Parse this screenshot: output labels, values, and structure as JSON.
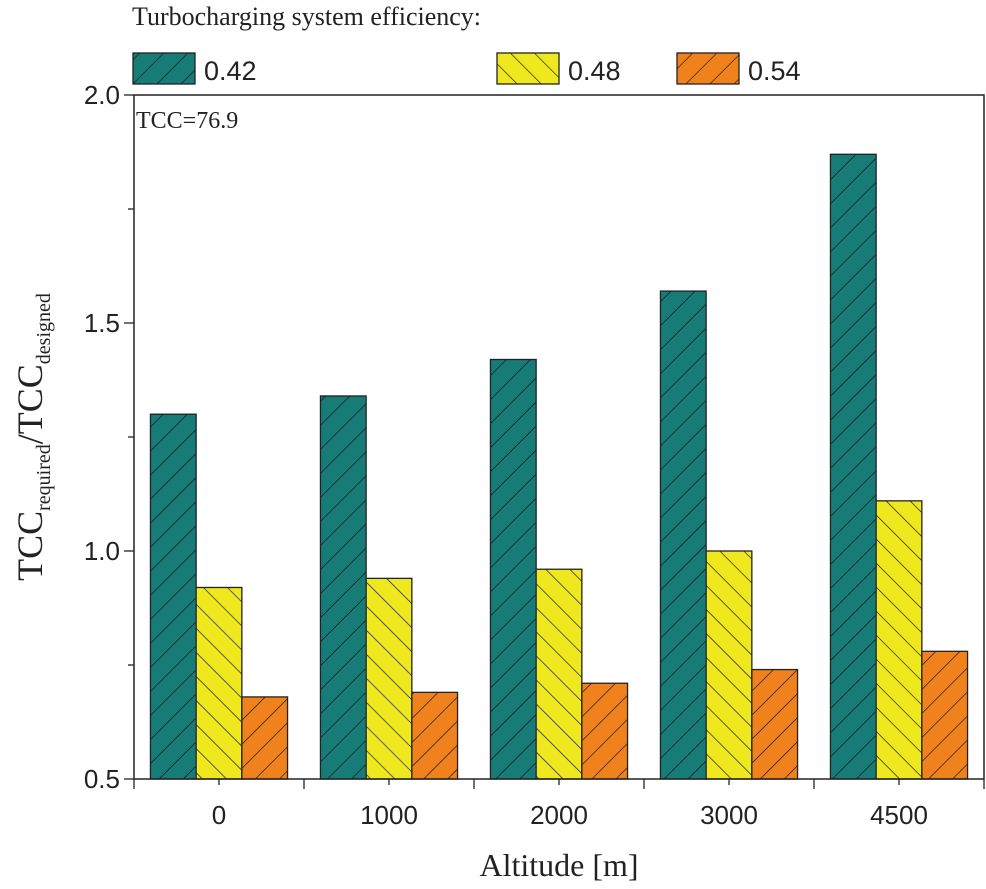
{
  "chart_data": {
    "type": "bar",
    "legend_title": "Turbocharging system efficiency:",
    "legend_placement": "top",
    "annotation": "TCC=76.9",
    "xlabel": "Altitude [m]",
    "ylabel_main": "TCC",
    "ylabel_sub1": "required",
    "ylabel_mid": "/TCC",
    "ylabel_sub2": "designed",
    "categories": [
      "0",
      "1000",
      "2000",
      "3000",
      "4500"
    ],
    "ylim": [
      0.5,
      2.0
    ],
    "yticks": [
      "0.5",
      "1.0",
      "1.5",
      "2.0"
    ],
    "grid": false,
    "series": [
      {
        "name": "0.42",
        "color": "#177b78",
        "hatch": "forward",
        "values": [
          1.3,
          1.34,
          1.42,
          1.57,
          1.87
        ]
      },
      {
        "name": "0.48",
        "color": "#f0e81e",
        "hatch": "backward",
        "values": [
          0.92,
          0.94,
          0.96,
          1.0,
          1.11
        ]
      },
      {
        "name": "0.54",
        "color": "#f0821e",
        "hatch": "forward",
        "values": [
          0.68,
          0.69,
          0.71,
          0.74,
          0.78
        ]
      }
    ]
  }
}
